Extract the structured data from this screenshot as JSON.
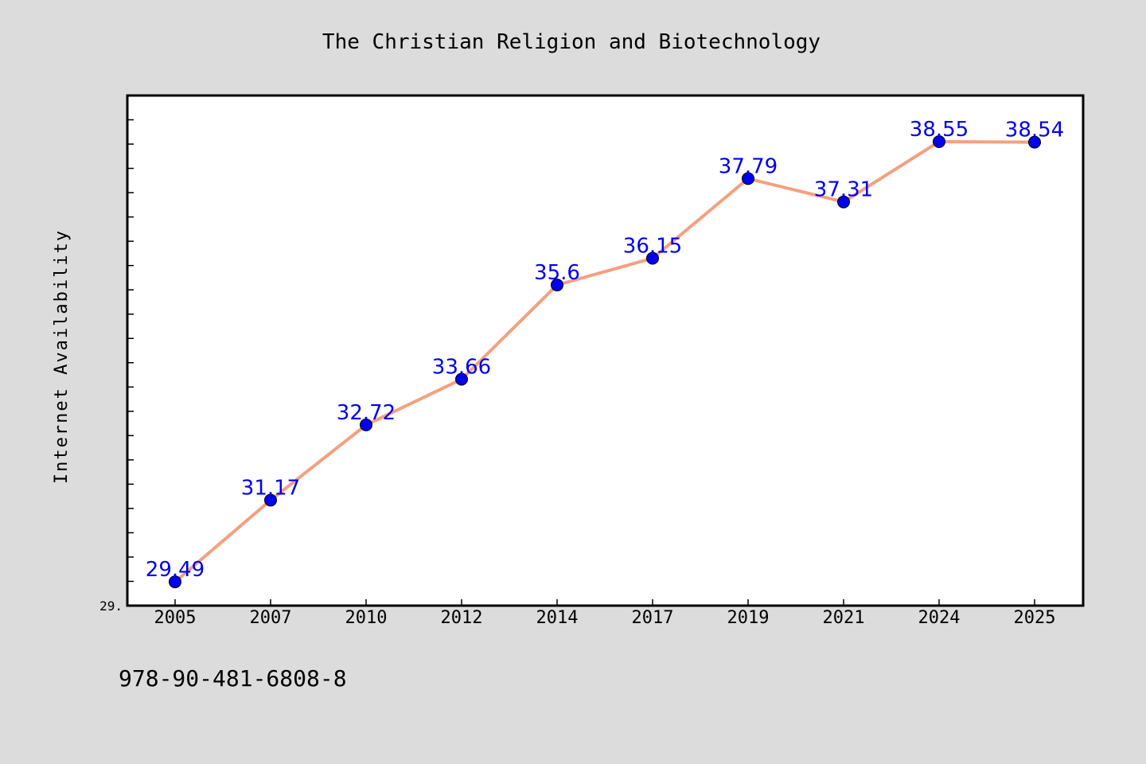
{
  "chart_data": {
    "type": "line",
    "title": "The Christian Religion and Biotechnology",
    "xlabel": "",
    "ylabel": "Internet Availability",
    "categories": [
      "2005",
      "2007",
      "2010",
      "2012",
      "2014",
      "2017",
      "2019",
      "2021",
      "2024",
      "2025"
    ],
    "series": [
      {
        "values": [
          29.49,
          31.17,
          32.72,
          33.66,
          35.6,
          36.15,
          37.79,
          37.31,
          38.55,
          38.54
        ]
      }
    ],
    "data_labels": [
      "29.49",
      "31.17",
      "32.72",
      "33.66",
      "35.6",
      "36.15",
      "37.79",
      "37.31",
      "38.55",
      "38.54"
    ],
    "y_tick_label": "29.",
    "ylim": [
      29.0,
      39.5
    ],
    "grid": false,
    "legend": "none",
    "colors": {
      "line": "#f4a07f",
      "marker": "#0000ee",
      "data_label": "#0000ee",
      "plot_background": "#ffffff",
      "figure_background": "#dcdcdc"
    }
  },
  "footer": {
    "isbn": "978-90-481-6808-8"
  }
}
